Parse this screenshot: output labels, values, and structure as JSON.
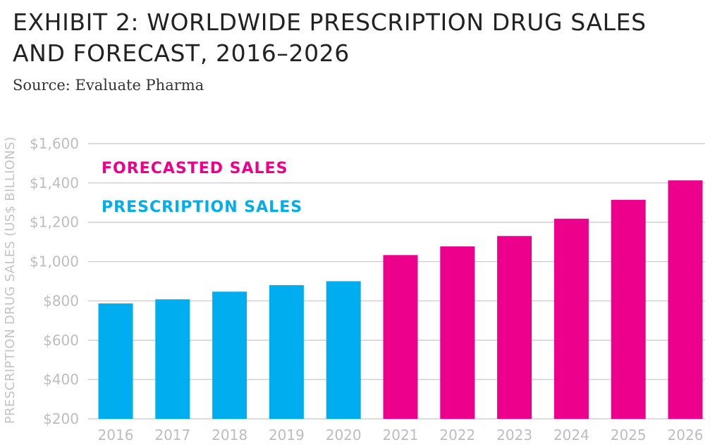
{
  "header": {
    "title_line1": "EXHIBIT 2: WORLDWIDE PRESCRIPTION DRUG SALES",
    "title_line2": "AND FORECAST, 2016–2026",
    "source": "Source: Evaluate Pharma"
  },
  "chart_data": {
    "type": "bar",
    "title": "EXHIBIT 2: WORLDWIDE PRESCRIPTION DRUG SALES AND FORECAST, 2016–2026",
    "subtitle": "Source: Evaluate Pharma",
    "xlabel": "",
    "ylabel": "PRESCRIPTION DRUG SALES (US$ BILLIONS)",
    "ylim": [
      200,
      1600
    ],
    "yticks": [
      200,
      400,
      600,
      800,
      1000,
      1200,
      1400,
      1600
    ],
    "ytick_labels": [
      "$200",
      "$400",
      "$600",
      "$800",
      "$1,000",
      "$1,200",
      "$1,400",
      "$1,600"
    ],
    "grid": true,
    "legend_position": "top-left",
    "categories": [
      "2016",
      "2017",
      "2018",
      "2019",
      "2020",
      "2021",
      "2022",
      "2023",
      "2024",
      "2025",
      "2026"
    ],
    "series": [
      {
        "name": "PRESCRIPTION SALES",
        "color": "#00aeef",
        "values": [
          787,
          808,
          847,
          880,
          900,
          null,
          null,
          null,
          null,
          null,
          null
        ]
      },
      {
        "name": "FORECASTED SALES",
        "color": "#ec008c",
        "values": [
          null,
          null,
          null,
          null,
          null,
          1033,
          1077,
          1130,
          1218,
          1314,
          1413
        ]
      }
    ],
    "legend": [
      {
        "label": "FORECASTED SALES",
        "color": "#ec008c"
      },
      {
        "label": "PRESCRIPTION SALES",
        "color": "#00aeef"
      }
    ]
  }
}
